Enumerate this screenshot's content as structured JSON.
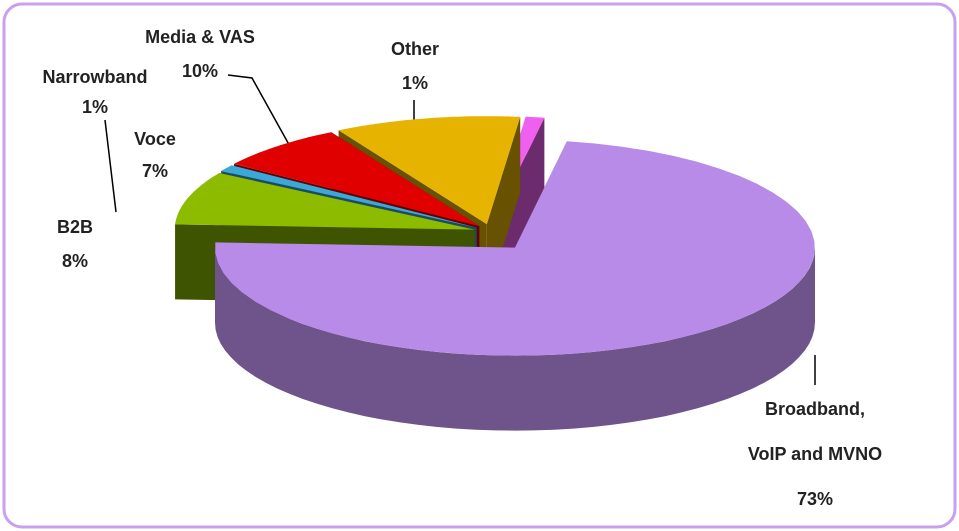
{
  "chart_data": {
    "type": "pie",
    "categories": [
      "Broadband, VoIP and MVNO",
      "B2B",
      "Narrowband",
      "Voce",
      "Media & VAS",
      "Other"
    ],
    "values": [
      73,
      8,
      1,
      7,
      10,
      1
    ],
    "value_labels": [
      "73%",
      "8%",
      "1%",
      "7%",
      "10%",
      "1%"
    ],
    "colors": [
      "#b98be8",
      "#8dbb00",
      "#3aa8d8",
      "#e00000",
      "#e6b400",
      "#f060f0"
    ]
  }
}
